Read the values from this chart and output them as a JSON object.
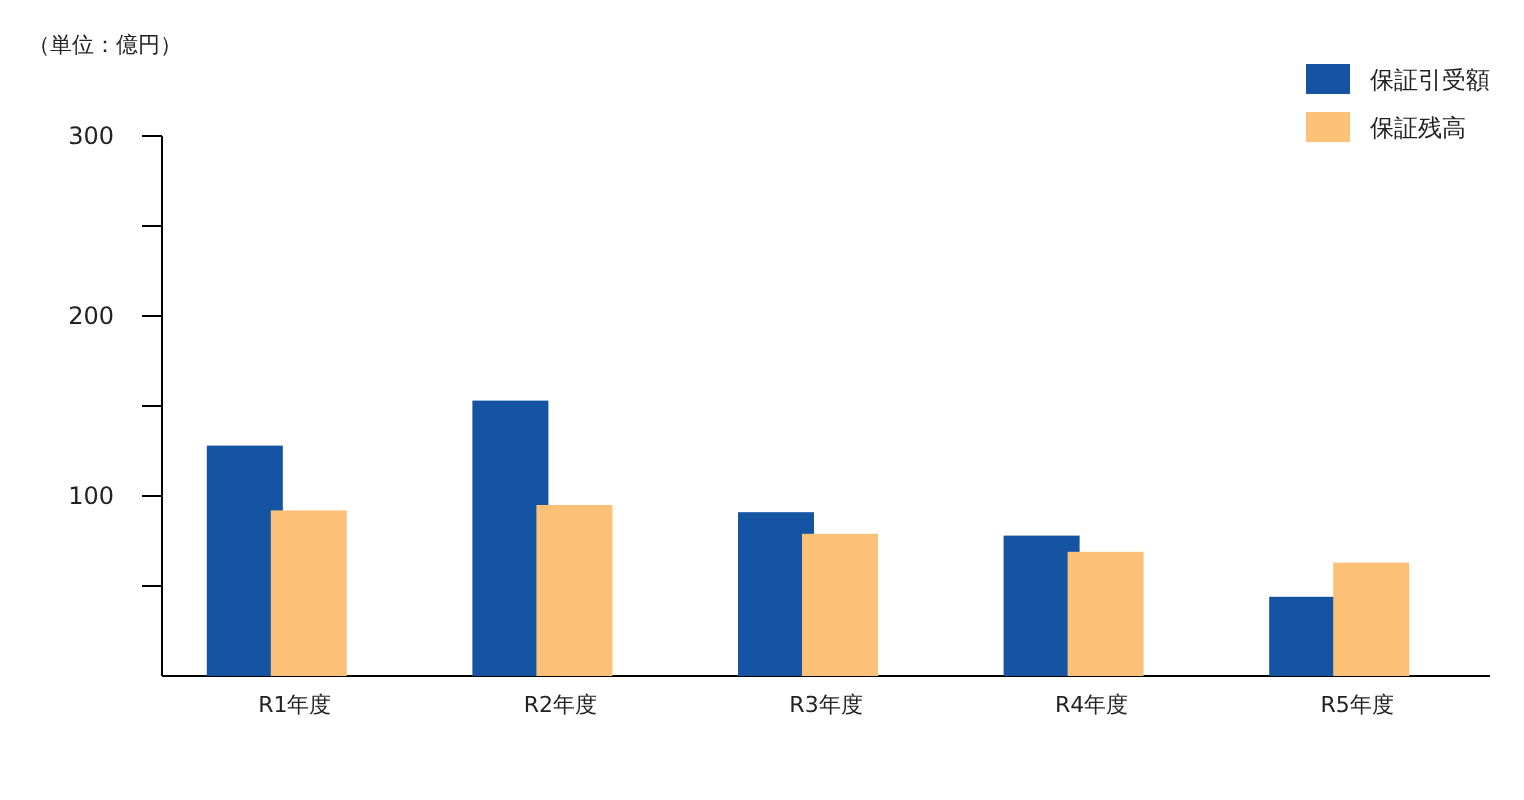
{
  "chart_data": {
    "type": "bar",
    "ylabel": "（単位：億円）",
    "categories": [
      "R1年度",
      "R2年度",
      "R3年度",
      "R4年度",
      "R5年度"
    ],
    "series": [
      {
        "name": "保証引受額",
        "color": "#1553a3",
        "values": [
          128,
          153,
          91,
          78,
          44
        ]
      },
      {
        "name": "保証残高",
        "color": "#fdc077",
        "values": [
          92,
          95,
          79,
          69,
          63
        ]
      }
    ],
    "ylim": [
      0,
      300
    ],
    "yticks": [
      {
        "value": 50,
        "label": null
      },
      100,
      {
        "value": 150,
        "label": null
      },
      200,
      {
        "value": 250,
        "label": null
      },
      300
    ],
    "legend": "top right"
  }
}
